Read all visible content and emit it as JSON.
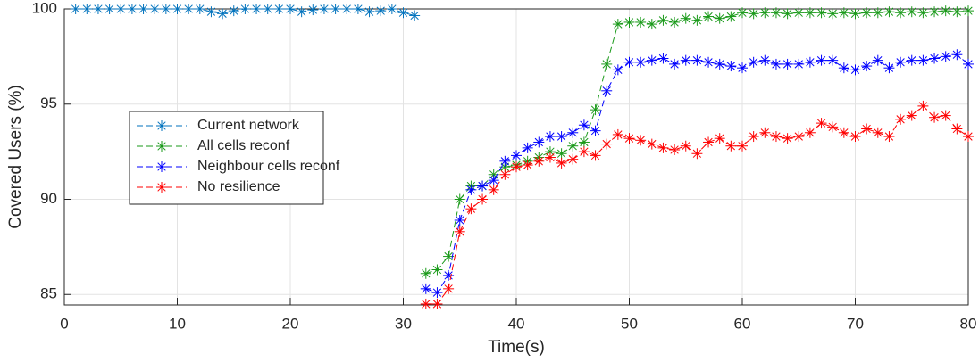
{
  "chart_data": {
    "type": "line",
    "xlabel": "Time(s)",
    "ylabel": "Covered Users (%)",
    "x": [
      1,
      2,
      3,
      4,
      5,
      6,
      7,
      8,
      9,
      10,
      11,
      12,
      13,
      14,
      15,
      16,
      17,
      18,
      19,
      20,
      21,
      22,
      23,
      24,
      25,
      26,
      27,
      28,
      29,
      30,
      31,
      32,
      33,
      34,
      35,
      36,
      37,
      38,
      39,
      40,
      41,
      42,
      43,
      44,
      45,
      46,
      47,
      48,
      49,
      50,
      51,
      52,
      53,
      54,
      55,
      56,
      57,
      58,
      59,
      60,
      61,
      62,
      63,
      64,
      65,
      66,
      67,
      68,
      69,
      70,
      71,
      72,
      73,
      74,
      75,
      76,
      77,
      78,
      79,
      80
    ],
    "series": [
      {
        "name": "Current network",
        "color": "#0072bd",
        "values": [
          100,
          100,
          100,
          100,
          100,
          100,
          100,
          100,
          100,
          100,
          100,
          100,
          99.85,
          99.75,
          99.9,
          100,
          100,
          100,
          100,
          100,
          99.85,
          99.95,
          100,
          100,
          100,
          100,
          99.85,
          99.9,
          100,
          99.8,
          99.65,
          null,
          null,
          null,
          null,
          null,
          null,
          null,
          null,
          null,
          null,
          null,
          null,
          null,
          null,
          null,
          null,
          null,
          null,
          null,
          null,
          null,
          null,
          null,
          null,
          null,
          null,
          null,
          null,
          null,
          null,
          null,
          null,
          null,
          null,
          null,
          null,
          null,
          null,
          null,
          null,
          null,
          null,
          null,
          null,
          null,
          null,
          null,
          null,
          null
        ]
      },
      {
        "name": "All cells reconf",
        "color": "#1a9a1a",
        "values": [
          null,
          null,
          null,
          null,
          null,
          null,
          null,
          null,
          null,
          null,
          null,
          null,
          null,
          null,
          null,
          null,
          null,
          null,
          null,
          null,
          null,
          null,
          null,
          null,
          null,
          null,
          null,
          null,
          null,
          null,
          null,
          86.1,
          86.3,
          87.0,
          90.0,
          90.7,
          90.7,
          91.3,
          91.7,
          91.8,
          92.0,
          92.2,
          92.5,
          92.4,
          92.8,
          93.0,
          94.7,
          97.1,
          99.2,
          99.3,
          99.3,
          99.2,
          99.4,
          99.3,
          99.5,
          99.4,
          99.6,
          99.5,
          99.6,
          99.8,
          99.75,
          99.8,
          99.8,
          99.75,
          99.8,
          99.8,
          99.8,
          99.75,
          99.8,
          99.75,
          99.8,
          99.8,
          99.85,
          99.8,
          99.85,
          99.8,
          99.85,
          99.9,
          99.85,
          99.9
        ]
      },
      {
        "name": "Neighbour cells reconf",
        "color": "#0000ff",
        "values": [
          null,
          null,
          null,
          null,
          null,
          null,
          null,
          null,
          null,
          null,
          null,
          null,
          null,
          null,
          null,
          null,
          null,
          null,
          null,
          null,
          null,
          null,
          null,
          null,
          null,
          null,
          null,
          null,
          null,
          null,
          null,
          85.3,
          85.1,
          86.0,
          88.9,
          90.5,
          90.7,
          91.0,
          92.0,
          92.3,
          92.7,
          93.0,
          93.3,
          93.3,
          93.5,
          93.9,
          93.6,
          95.7,
          96.8,
          97.2,
          97.2,
          97.3,
          97.4,
          97.1,
          97.3,
          97.3,
          97.2,
          97.1,
          97.0,
          96.9,
          97.2,
          97.3,
          97.1,
          97.1,
          97.1,
          97.2,
          97.3,
          97.3,
          96.9,
          96.8,
          97.0,
          97.3,
          96.9,
          97.2,
          97.3,
          97.3,
          97.4,
          97.5,
          97.6,
          97.1
        ]
      },
      {
        "name": "No resilience",
        "color": "#ff0000",
        "values": [
          null,
          null,
          null,
          null,
          null,
          null,
          null,
          null,
          null,
          null,
          null,
          null,
          null,
          null,
          null,
          null,
          null,
          null,
          null,
          null,
          null,
          null,
          null,
          null,
          null,
          null,
          null,
          null,
          null,
          null,
          null,
          84.5,
          84.5,
          85.3,
          88.3,
          89.5,
          90.0,
          90.5,
          91.3,
          91.7,
          91.8,
          92.0,
          92.2,
          91.9,
          92.1,
          92.5,
          92.3,
          92.9,
          93.4,
          93.2,
          93.1,
          92.9,
          92.7,
          92.6,
          92.8,
          92.4,
          93.0,
          93.2,
          92.8,
          92.8,
          93.3,
          93.5,
          93.3,
          93.2,
          93.3,
          93.5,
          94.0,
          93.8,
          93.5,
          93.3,
          93.7,
          93.5,
          93.3,
          94.2,
          94.4,
          94.9,
          94.3,
          94.4,
          93.7,
          93.3
        ]
      }
    ],
    "xlim": [
      0,
      80
    ],
    "xticks": [
      0,
      10,
      20,
      30,
      40,
      50,
      60,
      70,
      80
    ],
    "ylim": [
      84.45,
      100
    ],
    "yticks": [
      85,
      90,
      95,
      100
    ],
    "grid": true,
    "legend": "west"
  }
}
